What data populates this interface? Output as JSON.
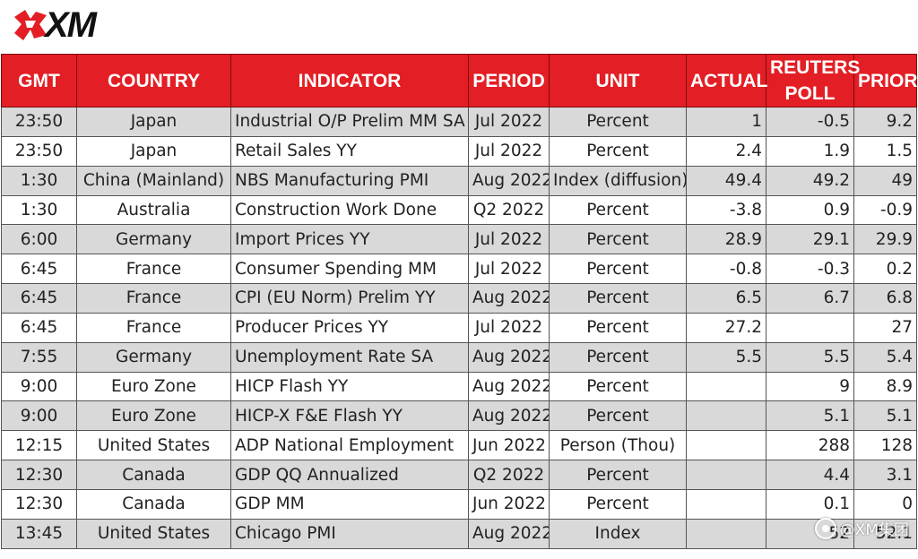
{
  "brand": {
    "logo_text": "XM",
    "accent_color": "#e31e24"
  },
  "table": {
    "headers": [
      "GMT",
      "COUNTRY",
      "INDICATOR",
      "PERIOD",
      "UNIT",
      "ACTUAL",
      "REUTERS POLL",
      "PRIOR"
    ],
    "rows": [
      {
        "gmt": "23:50",
        "country": "Japan",
        "indicator": "Industrial O/P Prelim MM SA",
        "period": "Jul 2022",
        "unit": "Percent",
        "actual": "1",
        "poll": "-0.5",
        "prior": "9.2"
      },
      {
        "gmt": "23:50",
        "country": "Japan",
        "indicator": "Retail Sales YY",
        "period": "Jul 2022",
        "unit": "Percent",
        "actual": "2.4",
        "poll": "1.9",
        "prior": "1.5"
      },
      {
        "gmt": "1:30",
        "country": "China (Mainland)",
        "indicator": "NBS Manufacturing PMI",
        "period": "Aug 2022",
        "unit": "Index (diffusion)",
        "actual": "49.4",
        "poll": "49.2",
        "prior": "49"
      },
      {
        "gmt": "1:30",
        "country": "Australia",
        "indicator": "Construction Work Done",
        "period": "Q2 2022",
        "unit": "Percent",
        "actual": "-3.8",
        "poll": "0.9",
        "prior": "-0.9"
      },
      {
        "gmt": "6:00",
        "country": "Germany",
        "indicator": "Import Prices YY",
        "period": "Jul 2022",
        "unit": "Percent",
        "actual": "28.9",
        "poll": "29.1",
        "prior": "29.9"
      },
      {
        "gmt": "6:45",
        "country": "France",
        "indicator": "Consumer Spending MM",
        "period": "Jul 2022",
        "unit": "Percent",
        "actual": "-0.8",
        "poll": "-0.3",
        "prior": "0.2"
      },
      {
        "gmt": "6:45",
        "country": "France",
        "indicator": "CPI (EU Norm) Prelim YY",
        "period": "Aug 2022",
        "unit": "Percent",
        "actual": "6.5",
        "poll": "6.7",
        "prior": "6.8"
      },
      {
        "gmt": "6:45",
        "country": "France",
        "indicator": "Producer Prices YY",
        "period": "Jul 2022",
        "unit": "Percent",
        "actual": "27.2",
        "poll": "",
        "prior": "27"
      },
      {
        "gmt": "7:55",
        "country": "Germany",
        "indicator": "Unemployment Rate SA",
        "period": "Aug 2022",
        "unit": "Percent",
        "actual": "5.5",
        "poll": "5.5",
        "prior": "5.4"
      },
      {
        "gmt": "9:00",
        "country": "Euro Zone",
        "indicator": "HICP Flash YY",
        "period": "Aug 2022",
        "unit": "Percent",
        "actual": "",
        "poll": "9",
        "prior": "8.9"
      },
      {
        "gmt": "9:00",
        "country": "Euro Zone",
        "indicator": "HICP-X F&E Flash YY",
        "period": "Aug 2022",
        "unit": "Percent",
        "actual": "",
        "poll": "5.1",
        "prior": "5.1"
      },
      {
        "gmt": "12:15",
        "country": "United States",
        "indicator": "ADP National Employment",
        "period": "Jun 2022",
        "unit": "Person (Thou)",
        "actual": "",
        "poll": "288",
        "prior": "128"
      },
      {
        "gmt": "12:30",
        "country": "Canada",
        "indicator": "GDP QQ Annualized",
        "period": "Q2 2022",
        "unit": "Percent",
        "actual": "",
        "poll": "4.4",
        "prior": "3.1"
      },
      {
        "gmt": "12:30",
        "country": "Canada",
        "indicator": "GDP MM",
        "period": "Jun 2022",
        "unit": "Percent",
        "actual": "",
        "poll": "0.1",
        "prior": "0"
      },
      {
        "gmt": "13:45",
        "country": "United States",
        "indicator": "Chicago PMI",
        "period": "Aug 2022",
        "unit": "Index",
        "actual": "",
        "poll": "52",
        "prior": "52.1"
      }
    ]
  },
  "watermark": {
    "text": "@XM集团"
  }
}
